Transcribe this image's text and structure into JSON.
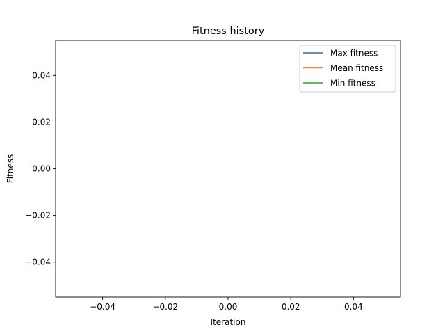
{
  "chart_data": {
    "type": "line",
    "title": "Fitness history",
    "xlabel": "Iteration",
    "ylabel": "Fitness",
    "xlim": [
      -0.055,
      0.055
    ],
    "ylim": [
      -0.055,
      0.055
    ],
    "xticks": [
      -0.04,
      -0.02,
      0.0,
      0.02,
      0.04
    ],
    "xtick_labels": [
      "−0.04",
      "−0.02",
      "0.00",
      "0.02",
      "0.04"
    ],
    "yticks": [
      -0.04,
      -0.02,
      0.0,
      0.02,
      0.04
    ],
    "ytick_labels": [
      "−0.04",
      "−0.02",
      "0.00",
      "0.02",
      "0.04"
    ],
    "grid": false,
    "legend_position": "upper right",
    "series": [
      {
        "name": "Max fitness",
        "color": "#1f77b4",
        "x": [],
        "y": []
      },
      {
        "name": "Mean fitness",
        "color": "#ff7f0e",
        "x": [],
        "y": []
      },
      {
        "name": "Min fitness",
        "color": "#2ca02c",
        "x": [],
        "y": []
      }
    ]
  }
}
